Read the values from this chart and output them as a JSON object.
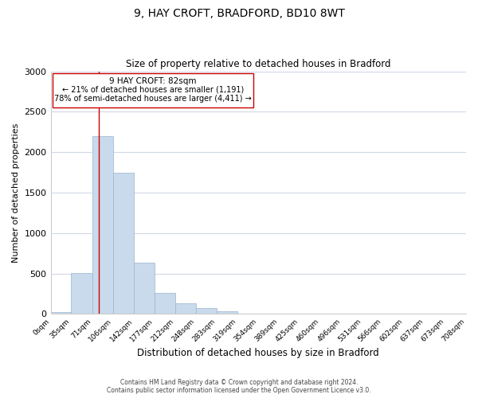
{
  "title": "9, HAY CROFT, BRADFORD, BD10 8WT",
  "subtitle": "Size of property relative to detached houses in Bradford",
  "xlabel": "Distribution of detached houses by size in Bradford",
  "ylabel": "Number of detached properties",
  "bar_color": "#c8daec",
  "bar_edge_color": "#9ab4cc",
  "bin_edges": [
    0,
    35,
    71,
    106,
    142,
    177,
    212,
    248,
    283,
    319,
    354,
    389,
    425,
    460,
    496,
    531,
    566,
    602,
    637,
    673,
    708
  ],
  "bin_labels": [
    "0sqm",
    "35sqm",
    "71sqm",
    "106sqm",
    "142sqm",
    "177sqm",
    "212sqm",
    "248sqm",
    "283sqm",
    "319sqm",
    "354sqm",
    "389sqm",
    "425sqm",
    "460sqm",
    "496sqm",
    "531sqm",
    "566sqm",
    "602sqm",
    "637sqm",
    "673sqm",
    "708sqm"
  ],
  "bar_heights": [
    25,
    510,
    2200,
    1750,
    630,
    260,
    130,
    70,
    30,
    5,
    5,
    5,
    2,
    0,
    0,
    0,
    0,
    0,
    0,
    0
  ],
  "ylim": [
    0,
    3000
  ],
  "yticks": [
    0,
    500,
    1000,
    1500,
    2000,
    2500,
    3000
  ],
  "property_line_x": 82,
  "property_line_color": "#cc0000",
  "annotation_title": "9 HAY CROFT: 82sqm",
  "annotation_line1": "← 21% of detached houses are smaller (1,191)",
  "annotation_line2": "78% of semi-detached houses are larger (4,411) →",
  "footer_line1": "Contains HM Land Registry data © Crown copyright and database right 2024.",
  "footer_line2": "Contains public sector information licensed under the Open Government Licence v3.0.",
  "background_color": "#ffffff",
  "grid_color": "#d0d8e8"
}
